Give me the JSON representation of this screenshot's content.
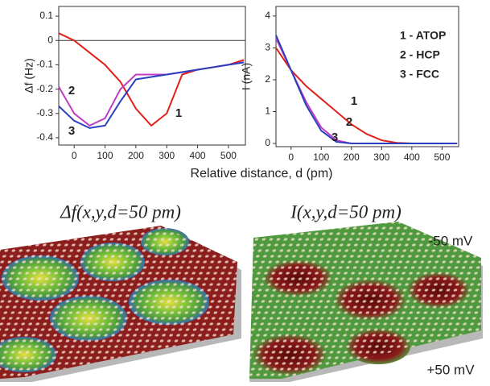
{
  "chart_data": [
    {
      "type": "line",
      "ylabel": "Δf (Hz)",
      "x": [
        -50,
        0,
        50,
        100,
        150,
        200,
        250,
        300,
        350,
        400,
        450,
        500,
        550
      ],
      "series": [
        {
          "color": "#e0201b",
          "values": [
            0.03,
            0.0,
            -0.05,
            -0.1,
            -0.17,
            -0.28,
            -0.35,
            -0.3,
            -0.14,
            -0.12,
            -0.11,
            -0.1,
            -0.08
          ]
        },
        {
          "color": "#c03cc0",
          "values": [
            -0.19,
            -0.3,
            -0.35,
            -0.32,
            -0.2,
            -0.14,
            -0.14,
            -0.14,
            -0.13,
            -0.12,
            -0.11,
            -0.1,
            -0.09
          ]
        },
        {
          "color": "#2a3fc0",
          "values": [
            -0.27,
            -0.33,
            -0.36,
            -0.35,
            -0.25,
            -0.16,
            -0.15,
            -0.14,
            -0.13,
            -0.12,
            -0.11,
            -0.1,
            -0.09
          ]
        }
      ],
      "curve_labels": [
        "1",
        "2",
        "3"
      ],
      "xlim": [
        -50,
        555
      ],
      "xticks": [
        0,
        100,
        200,
        300,
        400,
        500
      ],
      "ylim": [
        -0.43,
        0.14
      ],
      "yticks": [
        0.1,
        0,
        -0.1,
        -0.2,
        -0.3,
        -0.4
      ],
      "zero_line": true
    },
    {
      "type": "line",
      "ylabel": "I (nA)",
      "x": [
        -50,
        0,
        50,
        100,
        150,
        200,
        250,
        300,
        350,
        400,
        450,
        500,
        550
      ],
      "series": [
        {
          "name": "1 - ATOP",
          "color": "#e0201b",
          "values": [
            3.0,
            2.3,
            1.8,
            1.4,
            1.0,
            0.6,
            0.3,
            0.1,
            0.02,
            0,
            0,
            0,
            0
          ]
        },
        {
          "name": "2 - HCP",
          "color": "#c03cc0",
          "values": [
            3.3,
            2.3,
            1.3,
            0.5,
            0.1,
            0,
            0,
            0,
            0,
            0,
            0,
            0,
            0
          ]
        },
        {
          "name": "3 - FCC",
          "color": "#2a3fc0",
          "values": [
            3.4,
            2.3,
            1.2,
            0.4,
            0.05,
            0,
            0,
            0,
            0,
            0,
            0,
            0,
            0
          ]
        }
      ],
      "curve_labels": [
        "1",
        "2",
        "3"
      ],
      "xlim": [
        -50,
        555
      ],
      "xticks": [
        0,
        100,
        200,
        300,
        400,
        500
      ],
      "ylim": [
        -0.1,
        4.3
      ],
      "yticks": [
        0,
        1,
        2,
        3,
        4
      ],
      "zero_line": false
    }
  ],
  "xlabel": "Relative distance, d (pm)",
  "images": [
    {
      "title": "Δf(x,y,d=50 pm)"
    },
    {
      "title": "I(x,y,d=50 pm)",
      "annotations": [
        "-50 mV",
        "+50 mV"
      ]
    }
  ]
}
